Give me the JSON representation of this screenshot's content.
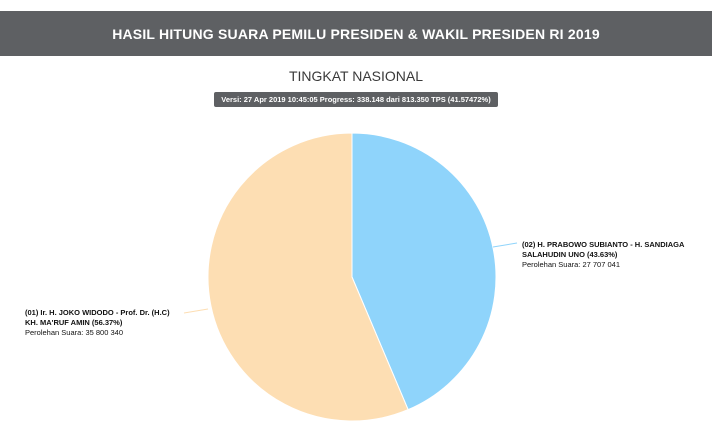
{
  "header": {
    "title": "HASIL HITUNG SUARA PEMILU PRESIDEN & WAKIL PRESIDEN RI 2019"
  },
  "subtitle": "TINGKAT NASIONAL",
  "version_badge": "Versi: 27 Apr 2019 10:45:05 Progress: 338.148 dari 813.350 TPS (41.57472%)",
  "chart_data": {
    "type": "pie",
    "series": [
      {
        "name_line1": "(02) H. PRABOWO SUBIANTO - H. SANDIAGA",
        "name_line2": "SALAHUDIN UNO (43.63%)",
        "percent": 43.63,
        "votes_label": "Perolehan Suara: 27 707 041",
        "votes": 27707041,
        "color": "#8fd4fb"
      },
      {
        "name_line1": "(01) Ir. H. JOKO WIDODO - Prof. Dr. (H.C)",
        "name_line2": "KH. MA'RUF AMIN (56.37%)",
        "percent": 56.37,
        "votes_label": "Perolehan Suara: 35 800 340",
        "votes": 35800340,
        "color": "#fddeb3"
      }
    ]
  }
}
